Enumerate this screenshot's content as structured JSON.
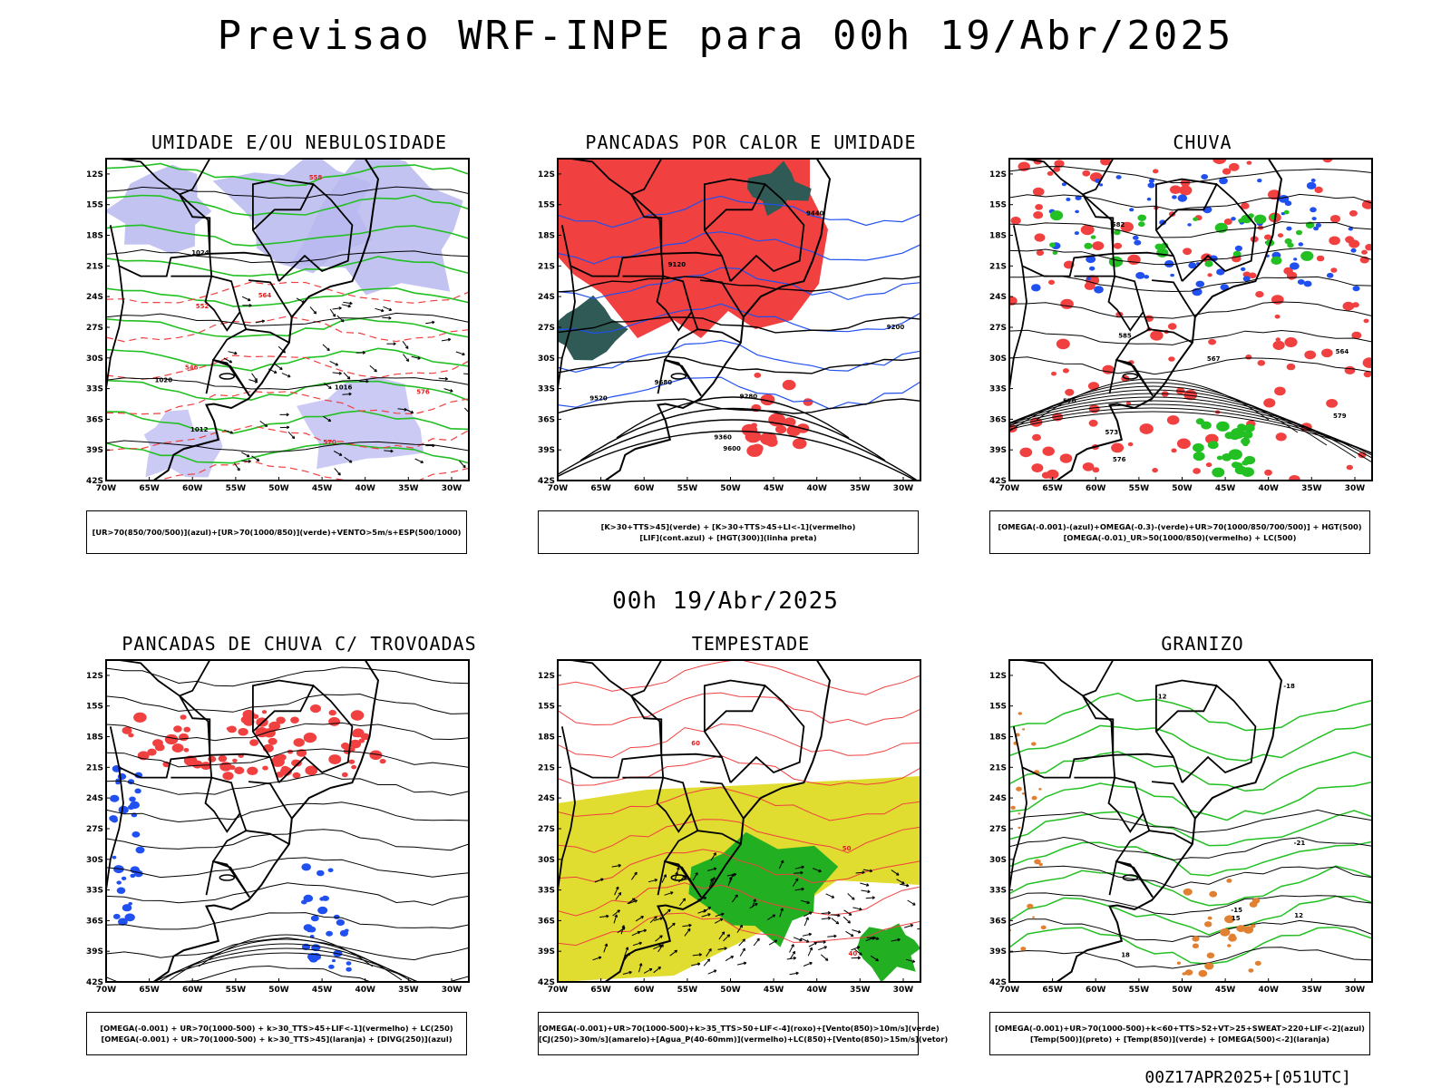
{
  "header": {
    "title": "Previsao WRF-INPE  para 00h 19/Abr/2025",
    "mid_date": "00h 19/Abr/2025",
    "run_info": "00Z17APR2025+[051UTC]"
  },
  "axes": {
    "lat_labels": [
      "12S",
      "15S",
      "18S",
      "21S",
      "24S",
      "27S",
      "30S",
      "33S",
      "36S",
      "39S",
      "42S"
    ],
    "lon_labels": [
      "70W",
      "65W",
      "60W",
      "55W",
      "50W",
      "45W",
      "40W",
      "35W",
      "30W"
    ]
  },
  "colors": {
    "humidity_blue": "#b8b8f0",
    "green": "#22c022",
    "red": "#f04040",
    "blue": "#2050f0",
    "yellow": "#e0dc30",
    "dark_teal": "#2f5a55",
    "orange": "#e08030",
    "black": "#000000"
  },
  "panels": [
    {
      "id": "umidade",
      "title": "UMIDADE E/OU NEBULOSIDADE",
      "legend": [
        "[UR>70(850/700/500)](azul)+[UR>70(1000/850)](verde)+VENTO>5m/s+ESP(500/1000)"
      ],
      "labels": [
        "1012",
        "1016",
        "1020",
        "1024",
        "570",
        "576",
        "564",
        "558",
        "552",
        "546"
      ]
    },
    {
      "id": "pancadas-calor",
      "title": "PANCADAS POR CALOR E UMIDADE",
      "legend": [
        "[K>30+TTS>45](verde) + [K>30+TTS>45+LI<-1](vermelho)",
        "[LIF](cont.azul) + [HGT(300)](linha preta)"
      ],
      "labels": [
        "9680",
        "9600",
        "9520",
        "9440",
        "9360",
        "9280",
        "9200",
        "9120"
      ]
    },
    {
      "id": "chuva",
      "title": "CHUVA",
      "legend": [
        "[OMEGA(-0.001)-(azul)+OMEGA(-0.3)-(verde)+UR>70(1000/850/700/500)] + HGT(500)",
        "[OMEGA(-0.01)_UR>50(1000/850)(vermelho) + LC(500)"
      ],
      "labels": [
        "585",
        "582",
        "579",
        "576",
        "573",
        "570",
        "567",
        "564"
      ]
    },
    {
      "id": "pancadas-trovoadas",
      "title": "PANCADAS DE CHUVA C/ TROVOADAS",
      "legend": [
        "[OMEGA(-0.001) + UR>70(1000-500) + k>30_TTS>45+LIF<-1](vermelho) + LC(250)",
        "[OMEGA(-0.001) + UR>70(1000-500) + k>30_TTS>45](laranja) + [DIVG(250)](azul)"
      ],
      "labels": []
    },
    {
      "id": "tempestade",
      "title": "TEMPESTADE",
      "legend": [
        "[OMEGA(-0.001)+UR>70(1000-500)+k>35_TTS>50+LIF<-4](roxo)+[Vento(850)>10m/s](verde)",
        "[CJ(250)>30m/s](amarelo)+[Agua_P(40-60mm)](vermelho)+LC(850)+[Vento(850)>15m/s](vetor)"
      ],
      "labels": [
        "60",
        "50",
        "40"
      ]
    },
    {
      "id": "granizo",
      "title": "GRANIZO",
      "legend": [
        "[OMEGA(-0.001)+UR>70(1000-500)+k<60+TTS>52+VT>25+SWEAT>220+LIF<-2](azul)",
        "[Temp(500)](preto) + [Temp(850)](verde) + [OMEGA(500)<-2](laranja)"
      ],
      "labels": [
        "-12",
        "-15",
        "-18",
        "-21",
        "15",
        "12",
        "18"
      ]
    }
  ]
}
